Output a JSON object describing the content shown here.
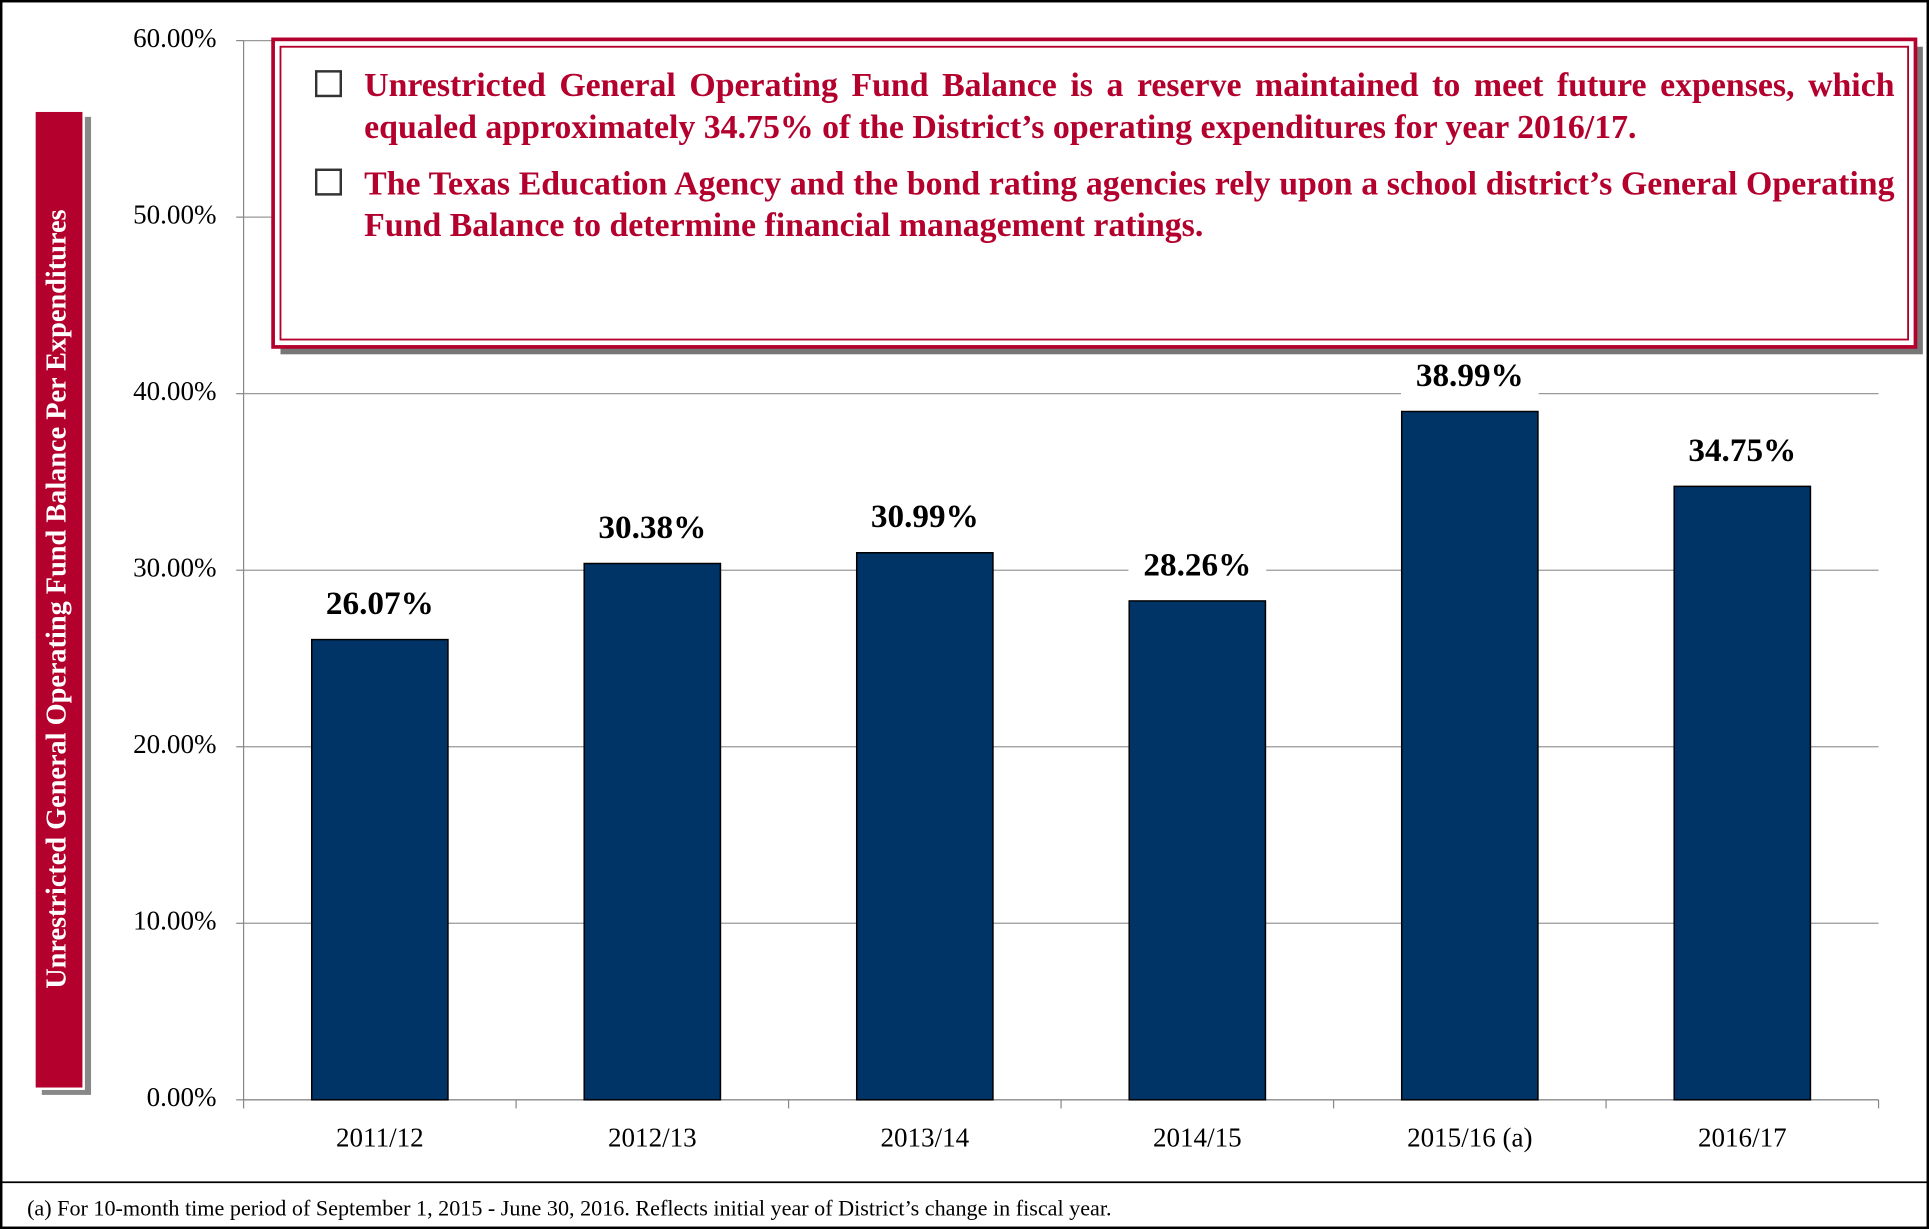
{
  "chart_data": {
    "type": "bar",
    "y_label": "Unrestricted General Operating Fund Balance Per Expenditures",
    "categories": [
      "2011/12",
      "2012/13",
      "2013/14",
      "2014/15",
      "2015/16 (a)",
      "2016/17"
    ],
    "values": [
      26.07,
      30.38,
      30.99,
      28.26,
      38.99,
      34.75
    ],
    "value_labels": [
      "26.07%",
      "30.38%",
      "30.99%",
      "28.26%",
      "38.99%",
      "34.75%"
    ],
    "color": "#003366",
    "ylim": [
      0,
      60
    ],
    "yticks": [
      {
        "value": 0,
        "label": "0.00%"
      },
      {
        "value": 10,
        "label": "10.00%"
      },
      {
        "value": 20,
        "label": "20.00%"
      },
      {
        "value": 30,
        "label": "30.00%"
      },
      {
        "value": 40,
        "label": "40.00%"
      },
      {
        "value": 50,
        "label": "50.00%"
      },
      {
        "value": 60,
        "label": "60.00%"
      }
    ],
    "grid": true,
    "annotations": [
      "Unrestricted General Operating Fund Balance is a reserve maintained to meet future expenses, which equaled approximately 34.75% of the District’s operating expenditures for year 2016/17.",
      "The Texas Education Agency and the bond rating agencies rely upon a school district’s General Operating Fund Balance to determine financial management ratings."
    ],
    "footnote": "(a)  For 10-month time period of September 1, 2015 - June 30, 2016. Reflects initial year of District’s change in fiscal year."
  }
}
